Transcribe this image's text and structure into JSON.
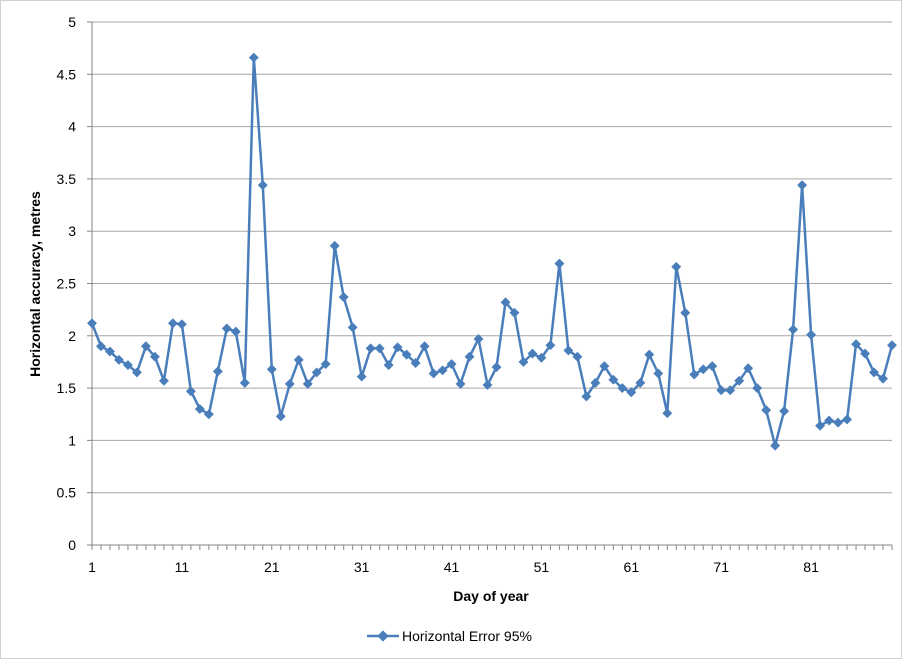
{
  "chart_data": {
    "type": "line",
    "title": "",
    "xlabel": "Day of year",
    "ylabel": "Horizontal accuracy, metres",
    "ylim": [
      0,
      5
    ],
    "xlim": [
      1,
      90
    ],
    "x_ticks": [
      1,
      11,
      21,
      31,
      41,
      51,
      61,
      71,
      81
    ],
    "y_ticks": [
      "0",
      "0.5",
      "1",
      "1.5",
      "2",
      "2.5",
      "3",
      "3.5",
      "4",
      "4.5",
      "5"
    ],
    "grid": "horizontal",
    "legend_position": "bottom",
    "series_color": "#4a7ebb",
    "series": [
      {
        "name": "Horizontal Error 95%",
        "x": [
          1,
          2,
          3,
          4,
          5,
          6,
          7,
          8,
          9,
          10,
          11,
          12,
          13,
          14,
          15,
          16,
          17,
          18,
          19,
          20,
          21,
          22,
          23,
          24,
          25,
          26,
          27,
          28,
          29,
          30,
          31,
          32,
          33,
          34,
          35,
          36,
          37,
          38,
          39,
          40,
          41,
          42,
          43,
          44,
          45,
          46,
          47,
          48,
          49,
          50,
          51,
          52,
          53,
          54,
          55,
          56,
          57,
          58,
          59,
          60,
          61,
          62,
          63,
          64,
          65,
          66,
          67,
          68,
          69,
          70,
          71,
          72,
          73,
          74,
          75,
          76,
          77,
          78,
          79,
          80,
          81,
          82,
          83,
          84,
          85,
          86,
          87,
          88,
          89,
          90
        ],
        "values": [
          2.12,
          1.9,
          1.85,
          1.77,
          1.72,
          1.65,
          1.9,
          1.8,
          1.57,
          2.12,
          2.11,
          1.47,
          1.3,
          1.25,
          1.66,
          2.07,
          2.04,
          1.55,
          4.66,
          3.44,
          1.68,
          1.23,
          1.54,
          1.77,
          1.54,
          1.65,
          1.73,
          2.86,
          2.37,
          2.08,
          1.61,
          1.88,
          1.88,
          1.72,
          1.89,
          1.82,
          1.74,
          1.9,
          1.64,
          1.67,
          1.73,
          1.54,
          1.8,
          1.97,
          1.53,
          1.7,
          2.32,
          2.22,
          1.75,
          1.83,
          1.79,
          1.91,
          2.69,
          1.86,
          1.8,
          1.42,
          1.55,
          1.71,
          1.58,
          1.5,
          1.46,
          1.55,
          1.82,
          1.64,
          1.26,
          2.66,
          2.22,
          1.63,
          1.68,
          1.71,
          1.48,
          1.48,
          1.57,
          1.69,
          1.5,
          1.29,
          0.95,
          1.28,
          2.06,
          3.44,
          2.01,
          1.14,
          1.19,
          1.17,
          1.2,
          1.92,
          1.83,
          1.65,
          1.59,
          1.91
        ]
      }
    ]
  }
}
